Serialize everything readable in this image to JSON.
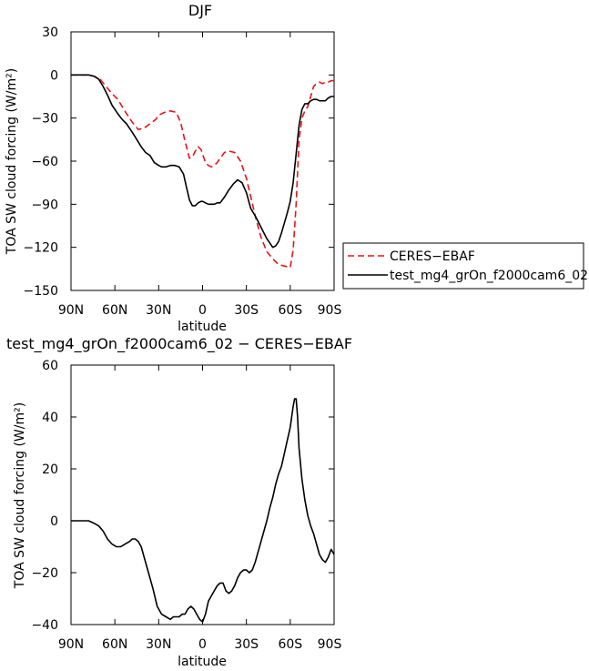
{
  "chart_data": [
    {
      "type": "line",
      "title": "DJF",
      "xlabel": "latitude",
      "ylabel": "TOA SW cloud forcing (W/m²)",
      "xlim": [
        90,
        -90
      ],
      "ylim": [
        -150,
        30
      ],
      "x_ticks": [
        90,
        60,
        30,
        0,
        -30,
        -60,
        -90
      ],
      "x_tick_labels": [
        "90N",
        "60N",
        "30N",
        "0",
        "30S",
        "60S",
        "90S"
      ],
      "y_ticks": [
        30,
        0,
        -30,
        -60,
        -90,
        -120,
        -150
      ],
      "y_tick_labels": [
        "30",
        "0",
        "−30",
        "−60",
        "−90",
        "−120",
        "−150"
      ],
      "legend_position": "right",
      "series": [
        {
          "name": "CERES−EBAF",
          "color": "#e8141a",
          "dash": "dashed",
          "x": [
            90,
            84,
            78,
            74,
            70,
            66,
            62,
            58,
            55,
            52,
            48,
            44,
            40,
            36,
            32,
            30,
            26,
            22,
            18,
            15,
            12,
            9,
            7,
            5,
            3,
            1,
            0,
            -2,
            -4,
            -6,
            -8,
            -10,
            -12,
            -15,
            -18,
            -22,
            -26,
            -30,
            -33,
            -36,
            -40,
            -44,
            -48,
            -52,
            -56,
            -60,
            -62,
            -64,
            -66,
            -68,
            -70,
            -72,
            -74,
            -76,
            -78,
            -80,
            -82,
            -84,
            -86,
            -88,
            -90
          ],
          "y": [
            0,
            0,
            0,
            -1,
            -3,
            -8,
            -13,
            -17,
            -22,
            -27,
            -33,
            -38,
            -37,
            -34,
            -31,
            -28,
            -26,
            -25,
            -26,
            -33,
            -46,
            -58,
            -57,
            -53,
            -50,
            -52,
            -55,
            -61,
            -63,
            -64,
            -63,
            -61,
            -58,
            -54,
            -53,
            -54,
            -60,
            -72,
            -85,
            -98,
            -113,
            -123,
            -128,
            -132,
            -133,
            -134,
            -122,
            -90,
            -45,
            -30,
            -25,
            -22,
            -15,
            -8,
            -6,
            -5,
            -6,
            -5,
            -5,
            -4,
            -4
          ]
        },
        {
          "name": "test_mg4_grOn_f2000cam6_02",
          "color": "#000000",
          "dash": "solid",
          "x": [
            90,
            84,
            78,
            74,
            71,
            68,
            65,
            62,
            58,
            55,
            52,
            48,
            45,
            42,
            39,
            36,
            33,
            30,
            28,
            25,
            22,
            19,
            16,
            13,
            11,
            9,
            7,
            5,
            3,
            1,
            0,
            -2,
            -4,
            -6,
            -8,
            -10,
            -12,
            -15,
            -18,
            -21,
            -24,
            -27,
            -30,
            -33,
            -36,
            -39,
            -42,
            -44,
            -46,
            -48,
            -50,
            -52,
            -54,
            -56,
            -58,
            -60,
            -62,
            -64,
            -66,
            -68,
            -70,
            -72,
            -74,
            -76,
            -78,
            -80,
            -82,
            -84,
            -86,
            -88,
            -90
          ],
          "y": [
            0,
            0,
            0,
            -1,
            -3,
            -8,
            -14,
            -21,
            -27,
            -31,
            -34,
            -40,
            -45,
            -50,
            -54,
            -56,
            -61,
            -63,
            -64,
            -64,
            -63,
            -63,
            -64,
            -69,
            -78,
            -87,
            -91,
            -91,
            -89,
            -88,
            -88,
            -89,
            -90,
            -90,
            -90,
            -89,
            -89,
            -85,
            -80,
            -76,
            -73,
            -75,
            -82,
            -93,
            -98,
            -104,
            -110,
            -114,
            -117,
            -120,
            -119,
            -116,
            -110,
            -103,
            -96,
            -88,
            -75,
            -55,
            -35,
            -24,
            -20,
            -20,
            -18,
            -17,
            -17,
            -18,
            -18,
            -18,
            -16,
            -15,
            -15
          ]
        }
      ]
    },
    {
      "type": "line",
      "title": "test_mg4_grOn_f2000cam6_02 − CERES−EBAF",
      "xlabel": "latitude",
      "ylabel": "TOA SW cloud forcing (W/m²)",
      "xlim": [
        90,
        -90
      ],
      "ylim": [
        -40,
        60
      ],
      "x_ticks": [
        90,
        60,
        30,
        0,
        -30,
        -60,
        -90
      ],
      "x_tick_labels": [
        "90N",
        "60N",
        "30N",
        "0",
        "30S",
        "60S",
        "90S"
      ],
      "y_ticks": [
        60,
        40,
        20,
        0,
        -20,
        -40
      ],
      "y_tick_labels": [
        "60",
        "40",
        "20",
        "0",
        "−20",
        "−40"
      ],
      "series": [
        {
          "name": "",
          "color": "#000000",
          "dash": "solid",
          "x": [
            90,
            84,
            78,
            74,
            71,
            68,
            65,
            62,
            59,
            56,
            53,
            50,
            48,
            46,
            44,
            42,
            40,
            37,
            34,
            31,
            28,
            25,
            22,
            20,
            18,
            16,
            14,
            12,
            10,
            8,
            6,
            4,
            2,
            0,
            -2,
            -4,
            -6,
            -8,
            -10,
            -12,
            -14,
            -16,
            -18,
            -20,
            -22,
            -24,
            -26,
            -28,
            -30,
            -32,
            -34,
            -36,
            -38,
            -40,
            -42,
            -44,
            -46,
            -48,
            -50,
            -52,
            -54,
            -56,
            -58,
            -60,
            -61,
            -62,
            -63,
            -64,
            -65,
            -66,
            -68,
            -70,
            -72,
            -74,
            -76,
            -78,
            -80,
            -82,
            -84,
            -86,
            -88,
            -90
          ],
          "y": [
            0,
            0,
            0,
            -1,
            -2,
            -4,
            -7,
            -9,
            -10,
            -10,
            -9,
            -8,
            -7,
            -7,
            -8,
            -10,
            -14,
            -20,
            -26,
            -33,
            -36,
            -37,
            -38,
            -37,
            -37,
            -37,
            -36,
            -36,
            -34,
            -33,
            -34,
            -36,
            -38,
            -39,
            -36,
            -31,
            -29,
            -27,
            -25,
            -24,
            -24,
            -27,
            -28,
            -27,
            -25,
            -22,
            -20,
            -19,
            -19,
            -20,
            -19,
            -16,
            -12,
            -8,
            -4,
            0,
            5,
            9,
            14,
            18,
            21,
            26,
            31,
            36,
            40,
            44,
            47,
            47,
            40,
            28,
            16,
            8,
            2,
            -2,
            -5,
            -9,
            -13,
            -15,
            -16,
            -14,
            -11,
            -13
          ]
        }
      ]
    }
  ]
}
